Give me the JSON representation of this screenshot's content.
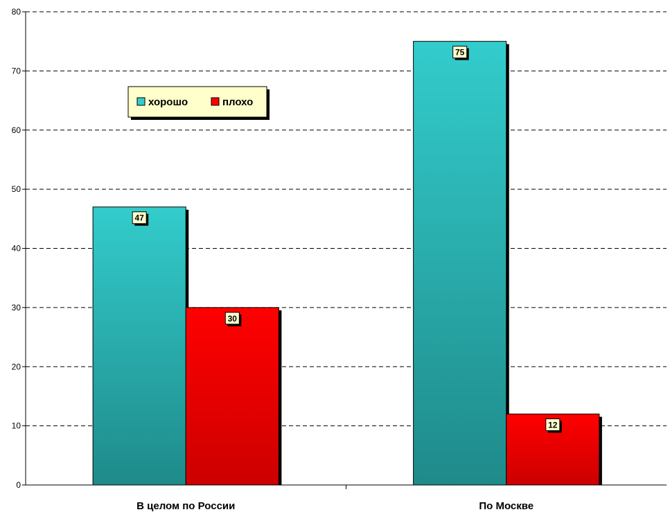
{
  "chart_data": {
    "type": "bar",
    "title": "",
    "xlabel": "",
    "ylabel": "",
    "categories": [
      "В целом по России",
      "По Москве"
    ],
    "series": [
      {
        "name": "хорошо",
        "values": [
          47,
          75
        ],
        "color": "#33CCCC",
        "color_dark": "#1F8A8A"
      },
      {
        "name": "плохо",
        "values": [
          30,
          12
        ],
        "color": "#FF0000",
        "color_dark": "#CC0000"
      }
    ],
    "ylim": [
      0,
      80
    ],
    "yticks": [
      0,
      10,
      20,
      30,
      40,
      50,
      60,
      70,
      80
    ],
    "grid": true,
    "data_labels": true,
    "legend_position": "top-left",
    "legend_background": "#FFFFCC"
  }
}
